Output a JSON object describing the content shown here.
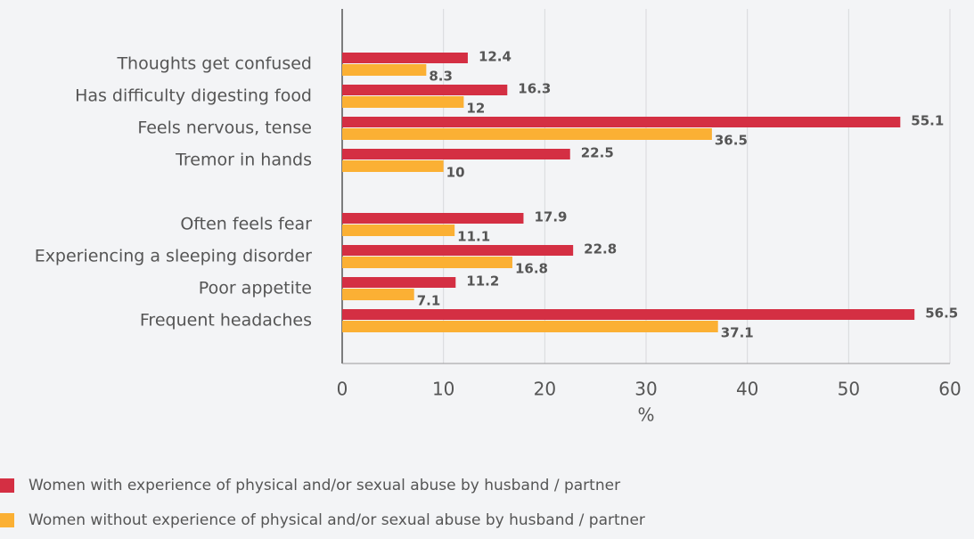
{
  "chart_data": {
    "type": "hbar",
    "categories": [
      "Thoughts get confused",
      "Has difficulty digesting food",
      "Feels nervous, tense",
      "Tremor in hands",
      null,
      "Often feels fear",
      "Experiencing a sleeping disorder",
      "Poor appetite",
      "Frequent headaches"
    ],
    "series": [
      {
        "name": "Women with experience of physical and/or sexual abuse by husband / partner",
        "color": "#d42f43",
        "values": [
          12.4,
          16.3,
          55.1,
          22.5,
          null,
          17.9,
          22.8,
          11.2,
          56.5
        ]
      },
      {
        "name": "Women without experience of physical and/or sexual abuse by husband / partner",
        "color": "#fbb034",
        "values": [
          8.3,
          12,
          36.5,
          10,
          null,
          11.1,
          16.8,
          7.1,
          37.1
        ]
      }
    ],
    "xlabel": "%",
    "xlim": [
      0,
      60
    ],
    "xticks": [
      0,
      10,
      20,
      30,
      40,
      50,
      60
    ],
    "grid": true
  }
}
